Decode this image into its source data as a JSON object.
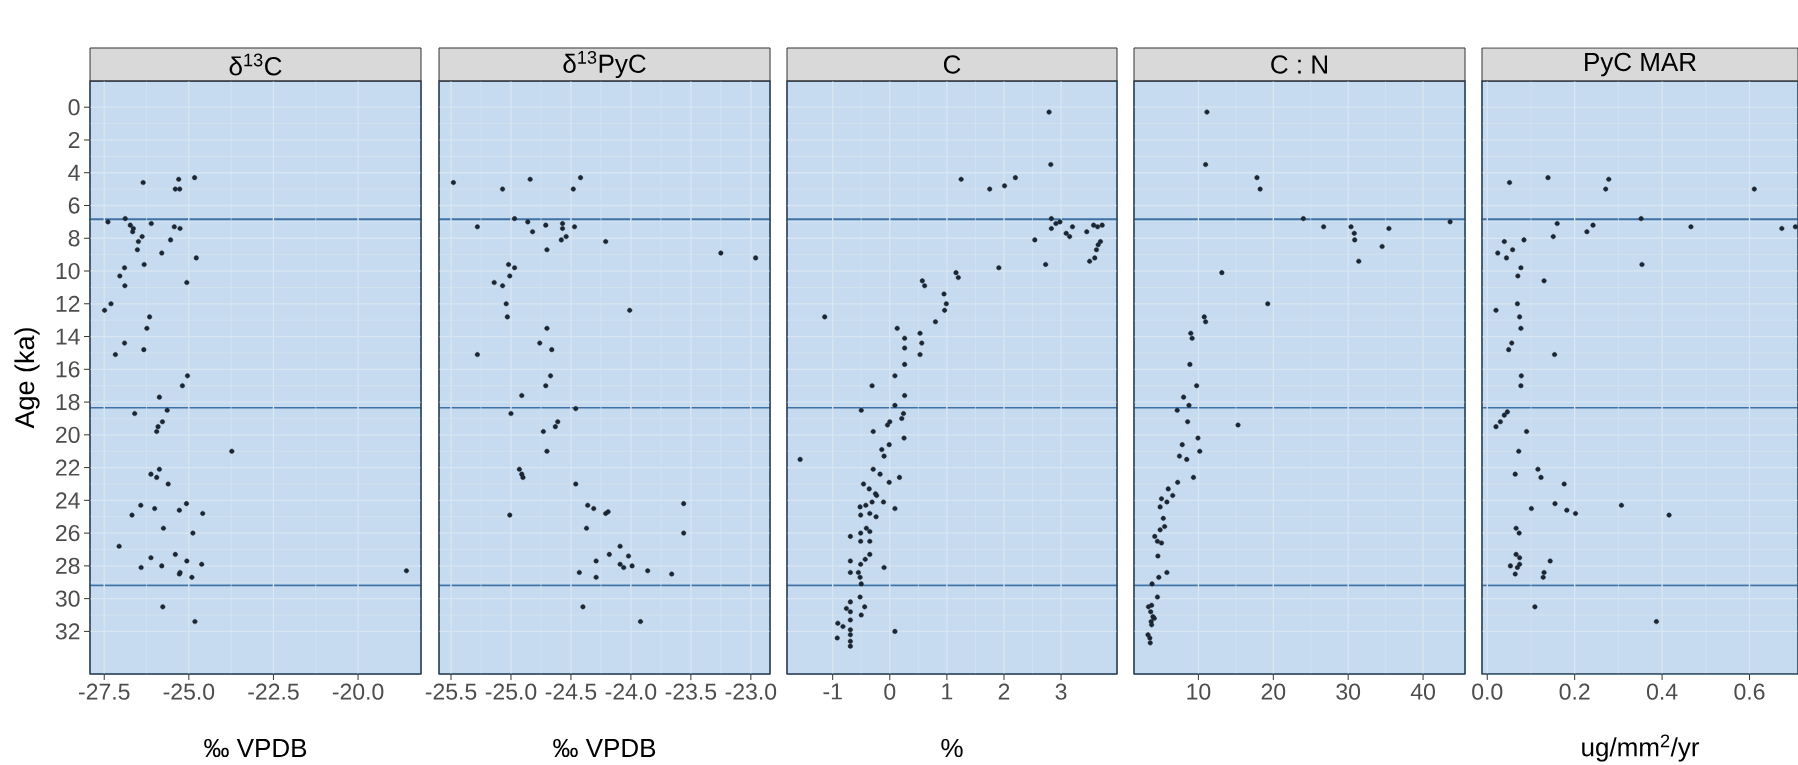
{
  "chart_data": [
    {
      "type": "scatter",
      "title": "δ$^{13}$C",
      "xlabel": "‰ VPDB",
      "ylabel": "Age (ka)",
      "color": "#1c2633",
      "marker": "circle",
      "grid": true,
      "xlim": [
        -27.92,
        -18.14
      ],
      "xticks": [
        -27.5,
        {
          "value": -25,
          "label": "-25.0"
        },
        -22.5,
        {
          "value": -20,
          "label": "-20.0"
        }
      ],
      "ylim": [
        34.6,
        -1.6
      ],
      "yticks": [
        0,
        2,
        4,
        6,
        8,
        10,
        12,
        14,
        16,
        18,
        20,
        22,
        24,
        26,
        28,
        30,
        32
      ],
      "bands": [
        {
          "axis": "y",
          "from": -1.6,
          "to": 6.85,
          "color": "#c6dbef"
        },
        {
          "axis": "y",
          "from": 6.85,
          "to": 18.35,
          "color": "#c6dbef"
        },
        {
          "axis": "y",
          "from": 18.35,
          "to": 29.2,
          "color": "#c6dbef"
        },
        {
          "axis": "y",
          "from": 29.2,
          "to": 34.6,
          "color": "#c6dbef"
        }
      ],
      "x": [
        -26.35,
        -25.3,
        -24.83,
        -25.4,
        -25.27,
        -27.39,
        -26.88,
        -26.73,
        -26.64,
        -26.11,
        -25.43,
        -25.26,
        -26.66,
        -26.38,
        -26.49,
        -25.54,
        -26.52,
        -25.8,
        -24.78,
        -26.32,
        -26.9,
        -27.04,
        -25.06,
        -26.89,
        -27.3,
        -27.49,
        -26.16,
        -26.24,
        -26.9,
        -26.33,
        -27.17,
        -25.04,
        -25.19,
        -25.87,
        -25.64,
        -26.6,
        -25.78,
        -25.91,
        -25.95,
        -23.73,
        -25.87,
        -26.12,
        -25.95,
        -25.61,
        -26.42,
        -25.07,
        -26.01,
        -25.28,
        -24.59,
        -26.68,
        -25.75,
        -24.88,
        -27.06,
        -26.12,
        -25.4,
        -25.06,
        -24.62,
        -26.41,
        -25.8,
        -25.26,
        -25.28,
        -24.91,
        -18.57,
        -25.77,
        -24.82
      ],
      "values": [
        4.6,
        4.4,
        4.3,
        5.0,
        5.0,
        7.0,
        6.8,
        7.2,
        7.4,
        7.1,
        7.3,
        7.4,
        7.6,
        7.9,
        8.2,
        8.1,
        8.7,
        8.9,
        9.2,
        9.6,
        9.8,
        10.3,
        10.7,
        10.9,
        12.0,
        12.4,
        12.8,
        13.5,
        14.4,
        14.8,
        15.1,
        16.4,
        17.0,
        17.7,
        18.5,
        18.7,
        19.2,
        19.5,
        19.8,
        21.0,
        22.1,
        22.4,
        22.6,
        23.0,
        24.3,
        24.2,
        24.5,
        24.6,
        24.8,
        24.9,
        25.7,
        26.0,
        26.8,
        27.5,
        27.3,
        27.7,
        27.9,
        28.1,
        28.0,
        28.4,
        28.5,
        28.7,
        28.3,
        30.5,
        31.4
      ]
    },
    {
      "type": "scatter",
      "title": "δ$^{13}$PyC",
      "xlabel": "‰ VPDB",
      "color": "#1c2633",
      "marker": "circle",
      "grid": true,
      "tick_labels": "x",
      "xlim": [
        -25.6,
        -22.84
      ],
      "xticks": [
        -25.5,
        {
          "value": -25,
          "label": "-25.0"
        },
        -24.5,
        {
          "value": -24,
          "label": "-24.0"
        },
        -23.5,
        {
          "value": -23,
          "label": "-23.0"
        }
      ],
      "ylim": [
        34.6,
        -1.6
      ],
      "yticks": [
        0,
        2,
        4,
        6,
        8,
        10,
        12,
        14,
        16,
        18,
        20,
        22,
        24,
        26,
        28,
        30,
        32
      ],
      "bands": [
        {
          "axis": "y",
          "from": -1.6,
          "to": 6.85,
          "color": "#c6dbef"
        },
        {
          "axis": "y",
          "from": 6.85,
          "to": 18.35,
          "color": "#c6dbef"
        },
        {
          "axis": "y",
          "from": 18.35,
          "to": 29.2,
          "color": "#c6dbef"
        },
        {
          "axis": "y",
          "from": 29.2,
          "to": 34.6,
          "color": "#c6dbef"
        }
      ],
      "x": [
        -25.48,
        -25.07,
        -24.84,
        -24.48,
        -24.42,
        -24.97,
        -25.28,
        -24.86,
        -24.71,
        -24.57,
        -24.47,
        -24.82,
        -24.57,
        -24.54,
        -24.58,
        -24.21,
        -24.7,
        -23.25,
        -22.96,
        -25.02,
        -24.97,
        -25.01,
        -25.14,
        -25.07,
        -25.04,
        -25.03,
        -24.01,
        -24.7,
        -24.76,
        -24.66,
        -25.28,
        -24.67,
        -24.71,
        -24.91,
        -24.46,
        -25.0,
        -24.61,
        -24.63,
        -24.73,
        -24.7,
        -24.93,
        -24.91,
        -24.9,
        -24.46,
        -24.36,
        -24.31,
        -24.21,
        -24.19,
        -23.56,
        -25.01,
        -24.37,
        -23.56,
        -24.09,
        -24.18,
        -24.02,
        -24.29,
        -24.09,
        -24.06,
        -23.99,
        -23.86,
        -23.66,
        -24.43,
        -24.29,
        -24.4,
        -23.92
      ],
      "values": [
        4.6,
        5.0,
        4.4,
        5.0,
        4.3,
        6.8,
        7.3,
        7.0,
        7.2,
        7.1,
        7.3,
        7.6,
        7.4,
        7.9,
        8.1,
        8.2,
        8.7,
        8.9,
        9.2,
        9.6,
        9.8,
        10.3,
        10.7,
        10.9,
        12.0,
        12.8,
        12.4,
        13.5,
        14.4,
        14.8,
        15.1,
        16.4,
        17.0,
        17.6,
        18.4,
        18.7,
        19.2,
        19.5,
        19.8,
        21.0,
        22.1,
        22.4,
        22.6,
        23.0,
        24.3,
        24.5,
        24.8,
        24.7,
        24.2,
        24.9,
        25.7,
        26.0,
        26.8,
        27.3,
        27.4,
        27.7,
        27.9,
        28.1,
        28.0,
        28.3,
        28.5,
        28.4,
        28.7,
        30.5,
        31.4
      ]
    },
    {
      "type": "scatter",
      "title": "C",
      "xlabel": "%",
      "color": "#1c2633",
      "marker": "circle",
      "grid": true,
      "tick_labels": "x",
      "xlim": [
        -1.8,
        3.98
      ],
      "xticks": [
        -1,
        0,
        1,
        2,
        3
      ],
      "ylim": [
        34.6,
        -1.6
      ],
      "yticks": [
        0,
        2,
        4,
        6,
        8,
        10,
        12,
        14,
        16,
        18,
        20,
        22,
        24,
        26,
        28,
        30,
        32
      ],
      "bands": [
        {
          "axis": "y",
          "from": -1.6,
          "to": 6.85,
          "color": "#c6dbef"
        },
        {
          "axis": "y",
          "from": 6.85,
          "to": 18.35,
          "color": "#c6dbef"
        },
        {
          "axis": "y",
          "from": 18.35,
          "to": 29.2,
          "color": "#c6dbef"
        },
        {
          "axis": "y",
          "from": 29.2,
          "to": 34.6,
          "color": "#c6dbef"
        }
      ],
      "x": [
        2.79,
        2.82,
        1.25,
        1.75,
        2.01,
        2.2,
        2.83,
        2.91,
        2.98,
        2.83,
        3.2,
        3.09,
        3.15,
        2.54,
        3.45,
        3.57,
        3.64,
        3.72,
        3.69,
        3.65,
        3.62,
        3.59,
        3.5,
        2.73,
        1.91,
        1.16,
        1.2,
        0.57,
        0.61,
        0.95,
        0.99,
        0.96,
        0.8,
        -1.14,
        0.13,
        0.26,
        0.26,
        0.53,
        0.56,
        0.53,
        0.26,
        0.09,
        -0.31,
        0.26,
        0.09,
        -0.5,
        0.24,
        0.21,
        0.0,
        -0.04,
        -0.29,
        0.25,
        -0.01,
        -0.14,
        -0.1,
        -1.57,
        -0.29,
        -0.17,
        0.17,
        -0.46,
        -0.01,
        -0.36,
        -0.25,
        -0.23,
        -0.11,
        -0.31,
        -0.42,
        -0.52,
        0.09,
        -0.35,
        -0.51,
        -0.24,
        -0.41,
        -0.35,
        -0.51,
        -0.69,
        -0.35,
        -0.51,
        -0.35,
        -0.43,
        -0.51,
        -0.69,
        -0.69,
        -0.55,
        -0.1,
        -0.52,
        -0.5,
        -0.52,
        -0.69,
        -0.44,
        -0.76,
        -0.69,
        -0.5,
        -0.69,
        -0.91,
        -0.82,
        -0.69,
        0.09,
        -0.92,
        -0.69,
        -0.69,
        -0.69
      ],
      "values": [
        0.3,
        3.5,
        4.4,
        5.0,
        4.8,
        4.3,
        6.8,
        7.1,
        7.0,
        7.4,
        7.3,
        7.7,
        7.9,
        8.1,
        7.6,
        7.2,
        7.3,
        7.2,
        8.2,
        8.4,
        8.7,
        9.2,
        9.4,
        9.6,
        9.8,
        10.1,
        10.4,
        10.6,
        10.9,
        11.4,
        12.0,
        12.4,
        13.1,
        12.8,
        13.5,
        14.1,
        14.7,
        13.8,
        14.4,
        15.1,
        15.7,
        16.4,
        17.0,
        17.6,
        18.2,
        18.5,
        18.7,
        19.0,
        19.2,
        19.4,
        19.8,
        20.2,
        20.6,
        20.9,
        21.3,
        21.5,
        22.1,
        22.4,
        22.6,
        23.0,
        22.9,
        23.3,
        23.6,
        23.7,
        24.1,
        24.1,
        24.3,
        24.4,
        24.5,
        24.8,
        24.9,
        25.0,
        25.7,
        25.9,
        26.0,
        26.2,
        26.5,
        26.5,
        27.3,
        27.6,
        27.9,
        27.7,
        28.4,
        28.4,
        28.1,
        28.7,
        29.1,
        29.9,
        30.2,
        30.5,
        30.6,
        30.8,
        31.0,
        31.3,
        31.5,
        31.7,
        31.9,
        32.0,
        32.4,
        32.2,
        32.6,
        32.9
      ]
    },
    {
      "type": "scatter",
      "title": "C : N",
      "color": "#1c2633",
      "marker": "circle",
      "grid": true,
      "tick_labels": "x",
      "xlim": [
        1.4,
        45.6
      ],
      "xticks": [
        10,
        20,
        30,
        40
      ],
      "ylim": [
        34.6,
        -1.6
      ],
      "yticks": [
        0,
        2,
        4,
        6,
        8,
        10,
        12,
        14,
        16,
        18,
        20,
        22,
        24,
        26,
        28,
        30,
        32
      ],
      "bands": [
        {
          "axis": "y",
          "from": -1.6,
          "to": 6.85,
          "color": "#c6dbef"
        },
        {
          "axis": "y",
          "from": 6.85,
          "to": 18.35,
          "color": "#c6dbef"
        },
        {
          "axis": "y",
          "from": 18.35,
          "to": 29.2,
          "color": "#c6dbef"
        },
        {
          "axis": "y",
          "from": 29.2,
          "to": 34.6,
          "color": "#c6dbef"
        }
      ],
      "x": [
        11.14,
        10.96,
        17.82,
        18.24,
        24.01,
        26.72,
        30.38,
        30.81,
        30.87,
        35.44,
        34.53,
        43.61,
        31.41,
        13.13,
        19.26,
        10.78,
        10.96,
        8.98,
        9.16,
        8.86,
        9.76,
        8.02,
        8.74,
        7.17,
        8.56,
        15.29,
        7.84,
        9.94,
        10.18,
        7.47,
        8.44,
        9.34,
        7.23,
        5.97,
        6.57,
        5.07,
        5.79,
        4.89,
        5.31,
        5.49,
        4.89,
        4.17,
        4.53,
        5.07,
        4.59,
        5.79,
        4.71,
        3.81,
        4.53,
        3.33,
        3.75,
        3.63,
        3.93,
        4.11,
        3.69,
        3.75,
        3.27,
        3.51,
        3.57
      ],
      "values": [
        0.3,
        3.5,
        4.3,
        5.0,
        6.8,
        7.3,
        7.3,
        7.7,
        8.1,
        7.4,
        8.5,
        7.0,
        9.4,
        10.1,
        12.0,
        12.8,
        13.1,
        13.8,
        14.1,
        15.7,
        17.0,
        17.7,
        18.2,
        18.5,
        19.2,
        19.4,
        20.6,
        20.2,
        21.0,
        21.3,
        21.5,
        22.6,
        22.9,
        23.3,
        23.7,
        23.9,
        24.1,
        24.4,
        25.1,
        25.6,
        25.8,
        26.2,
        26.5,
        26.6,
        27.4,
        28.4,
        28.7,
        29.1,
        29.9,
        30.5,
        30.4,
        30.8,
        31.1,
        31.2,
        31.4,
        31.6,
        32.2,
        32.4,
        32.7
      ]
    },
    {
      "type": "scatter",
      "title": "PyC MAR",
      "xlabel": "ug/mm$^{2}$/yr",
      "color": "#1c2633",
      "marker": "circle",
      "grid": true,
      "tick_labels": "x",
      "xlim": [
        -0.012,
        0.711
      ],
      "xticks": [
        {
          "value": 0,
          "label": "0.0"
        },
        0.2,
        0.4,
        0.6
      ],
      "ylim": [
        34.6,
        -1.6
      ],
      "yticks": [
        0,
        2,
        4,
        6,
        8,
        10,
        12,
        14,
        16,
        18,
        20,
        22,
        24,
        26,
        28,
        30,
        32
      ],
      "bands": [
        {
          "axis": "y",
          "from": -1.6,
          "to": 6.85,
          "color": "#c6dbef"
        },
        {
          "axis": "y",
          "from": 6.85,
          "to": 18.35,
          "color": "#c6dbef"
        },
        {
          "axis": "y",
          "from": 18.35,
          "to": 29.2,
          "color": "#c6dbef"
        },
        {
          "axis": "y",
          "from": 29.2,
          "to": 34.6,
          "color": "#c6dbef"
        }
      ],
      "x": [
        0.051,
        0.139,
        0.278,
        0.271,
        0.611,
        0.352,
        0.16,
        0.242,
        0.228,
        0.151,
        0.466,
        0.674,
        0.705,
        0.039,
        0.084,
        0.024,
        0.058,
        0.044,
        0.354,
        0.077,
        0.07,
        0.13,
        0.02,
        0.069,
        0.074,
        0.077,
        0.056,
        0.049,
        0.154,
        0.078,
        0.077,
        0.046,
        0.039,
        0.03,
        0.02,
        0.09,
        0.072,
        0.064,
        0.116,
        0.123,
        0.176,
        0.155,
        0.101,
        0.182,
        0.202,
        0.307,
        0.416,
        0.066,
        0.073,
        0.066,
        0.074,
        0.144,
        0.053,
        0.074,
        0.069,
        0.064,
        0.13,
        0.128,
        0.109,
        0.387
      ],
      "values": [
        4.6,
        4.3,
        4.4,
        5.0,
        5.0,
        6.8,
        7.1,
        7.2,
        7.6,
        7.9,
        7.3,
        7.4,
        7.3,
        8.2,
        8.1,
        8.9,
        8.7,
        9.2,
        9.6,
        9.8,
        10.3,
        10.6,
        12.4,
        12.0,
        12.8,
        13.5,
        14.4,
        14.8,
        15.1,
        16.4,
        17.0,
        18.6,
        18.8,
        19.2,
        19.5,
        19.8,
        21.0,
        22.4,
        22.1,
        22.6,
        23.0,
        24.2,
        24.5,
        24.6,
        24.8,
        24.3,
        24.9,
        25.7,
        26.0,
        27.3,
        27.5,
        27.7,
        28.0,
        27.9,
        28.1,
        28.5,
        28.4,
        28.7,
        30.5,
        31.4
      ]
    }
  ]
}
